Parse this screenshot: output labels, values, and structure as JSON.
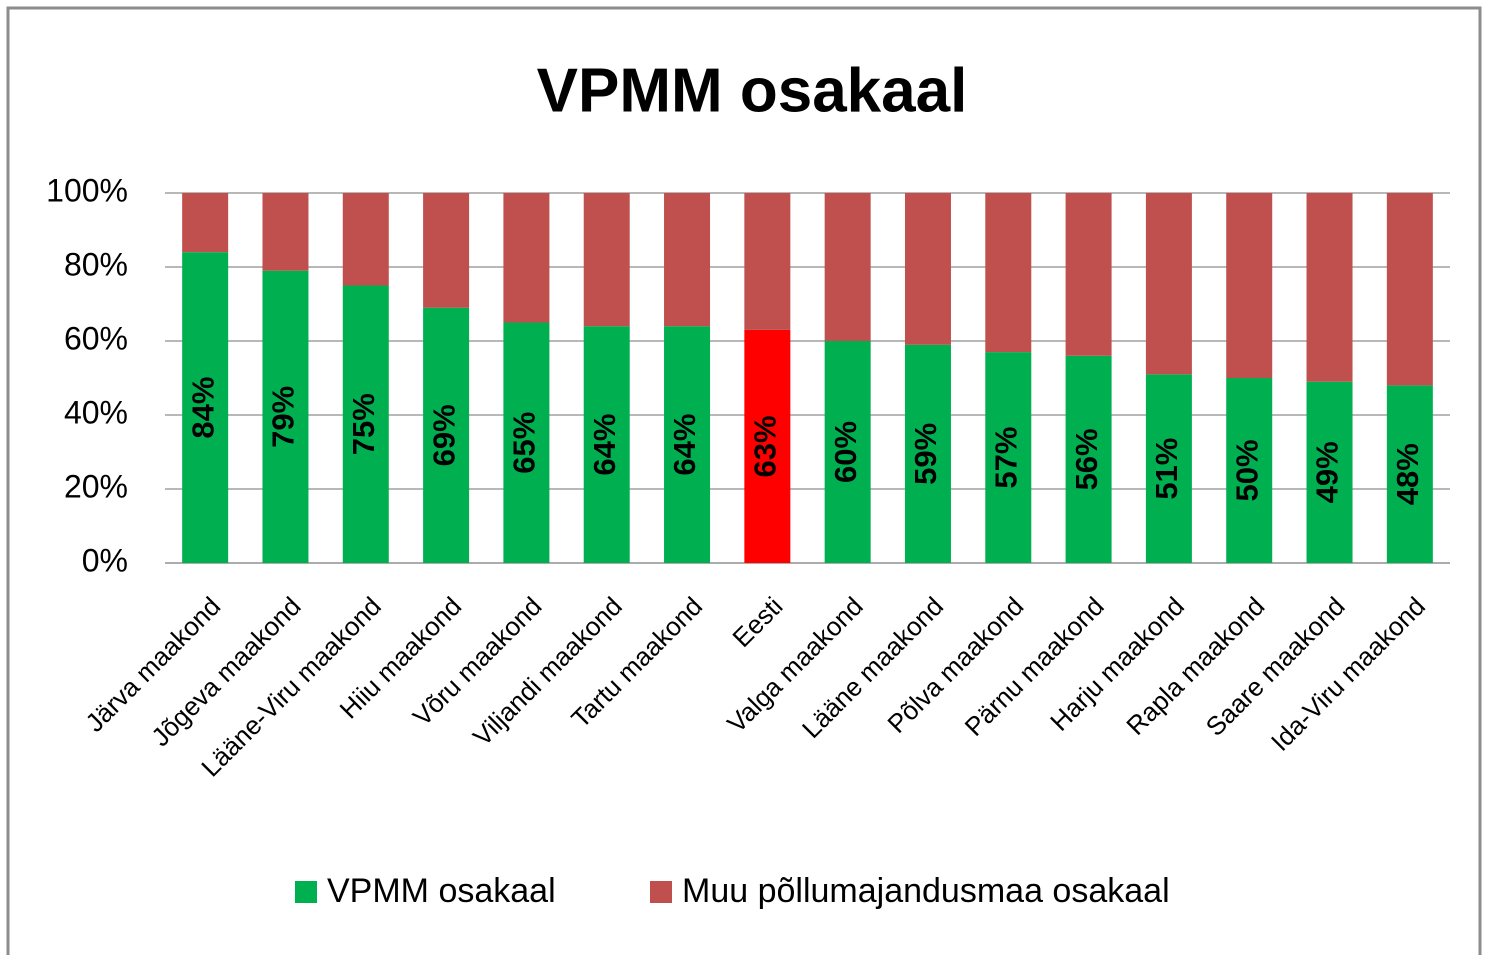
{
  "chart_data": {
    "type": "stacked_bar",
    "title": "VPMM osakaal",
    "categories": [
      "Järva maakond",
      "Jõgeva maakond",
      "Lääne-Viru maakond",
      "Hiiu maakond",
      "Võru maakond",
      "Viljandi maakond",
      "Tartu maakond",
      "Eesti",
      "Valga maakond",
      "Lääne maakond",
      "Põlva maakond",
      "Pärnu maakond",
      "Harju maakond",
      "Rapla maakond",
      "Saare maakond",
      "Ida-Viru maakond"
    ],
    "series": [
      {
        "name": "VPMM osakaal",
        "color": "#00b050",
        "colors": [
          "#00b050",
          "#00b050",
          "#00b050",
          "#00b050",
          "#00b050",
          "#00b050",
          "#00b050",
          "#ff0000",
          "#00b050",
          "#00b050",
          "#00b050",
          "#00b050",
          "#00b050",
          "#00b050",
          "#00b050",
          "#00b050"
        ],
        "values": [
          84,
          79,
          75,
          69,
          65,
          64,
          64,
          63,
          60,
          59,
          57,
          56,
          51,
          50,
          49,
          48
        ],
        "value_labels": [
          "84%",
          "79%",
          "75%",
          "69%",
          "65%",
          "64%",
          "64%",
          "63%",
          "60%",
          "59%",
          "57%",
          "56%",
          "51%",
          "50%",
          "49%",
          "48%"
        ]
      },
      {
        "name": "Muu põllumajandusmaa osakaal",
        "color": "#c0504d",
        "values": [
          16,
          21,
          25,
          31,
          35,
          36,
          36,
          37,
          40,
          41,
          43,
          44,
          49,
          50,
          51,
          52
        ]
      }
    ],
    "ylim": [
      0,
      100
    ],
    "yticks": [
      {
        "value": 0,
        "label": "0%"
      },
      {
        "value": 20,
        "label": "20%"
      },
      {
        "value": 40,
        "label": "40%"
      },
      {
        "value": 60,
        "label": "60%"
      },
      {
        "value": 80,
        "label": "80%"
      },
      {
        "value": 100,
        "label": "100%"
      }
    ],
    "grid": true,
    "legend": "bottom"
  }
}
